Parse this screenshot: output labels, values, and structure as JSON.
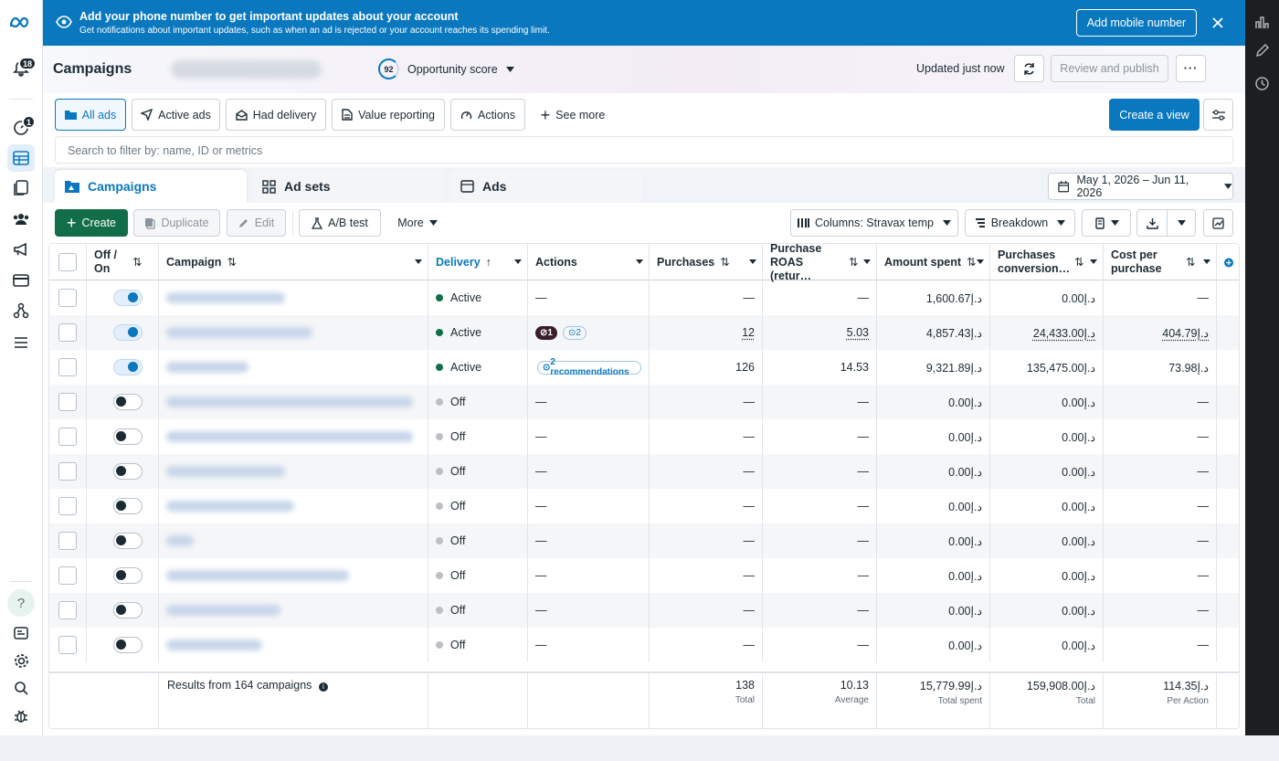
{
  "nav": {
    "notifications_badge": "18",
    "alerts_badge": "1"
  },
  "banner": {
    "title": "Add your phone number to get important updates about your account",
    "subtitle": "Get notifications about important updates, such as when an ad is rejected or your account reaches its spending limit.",
    "button": "Add mobile number"
  },
  "header": {
    "title": "Campaigns",
    "score_value": "92",
    "score_label": "Opportunity score",
    "updated": "Updated just now",
    "review_publish": "Review and publish"
  },
  "views": {
    "all_ads": "All ads",
    "active_ads": "Active ads",
    "had_delivery": "Had delivery",
    "value_reporting": "Value reporting",
    "actions": "Actions",
    "see_more": "See more",
    "create_view": "Create a view"
  },
  "search": {
    "placeholder": "Search to filter by: name, ID or metrics"
  },
  "tabs": {
    "campaigns": "Campaigns",
    "ad_sets": "Ad sets",
    "ads": "Ads"
  },
  "date_range": "May 1, 2026 – Jun 11, 2026",
  "toolbar": {
    "create": "Create",
    "duplicate": "Duplicate",
    "edit": "Edit",
    "ab_test": "A/B test",
    "more": "More",
    "columns": "Columns: Stravax temp",
    "breakdown": "Breakdown"
  },
  "columns": {
    "offon": "Off / On",
    "campaign": "Campaign",
    "delivery": "Delivery",
    "actions": "Actions",
    "purchases": "Purchases",
    "roas": "Purchase ROAS (retur…",
    "amount": "Amount spent",
    "conv": "Purchases conversion…",
    "cpp": "Cost per purchase"
  },
  "rows": [
    {
      "on": true,
      "delivery": "Active",
      "actions": "—",
      "purchases": "—",
      "roas": "—",
      "amount": "1,600.67د.إ",
      "conv": "0.00د.إ",
      "cpp": "—"
    },
    {
      "on": true,
      "delivery": "Active",
      "actions": "",
      "badge_issue": "1",
      "badge_rec": "2",
      "purchases": "12",
      "roas": "5.03",
      "amount": "4,857.43د.إ",
      "conv": "24,433.00د.إ",
      "cpp": "404.79د.إ"
    },
    {
      "on": true,
      "delivery": "Active",
      "actions": "",
      "rec_label": "2 recommendations",
      "purchases": "126",
      "roas": "14.53",
      "amount": "9,321.89د.إ",
      "conv": "135,475.00د.إ",
      "cpp": "73.98د.إ"
    },
    {
      "on": false,
      "delivery": "Off",
      "actions": "—",
      "purchases": "—",
      "roas": "—",
      "amount": "0.00د.إ",
      "conv": "0.00د.إ",
      "cpp": "—"
    },
    {
      "on": false,
      "delivery": "Off",
      "actions": "—",
      "purchases": "—",
      "roas": "—",
      "amount": "0.00د.إ",
      "conv": "0.00د.إ",
      "cpp": "—"
    },
    {
      "on": false,
      "delivery": "Off",
      "actions": "—",
      "purchases": "—",
      "roas": "—",
      "amount": "0.00د.إ",
      "conv": "0.00د.إ",
      "cpp": "—"
    },
    {
      "on": false,
      "delivery": "Off",
      "actions": "—",
      "purchases": "—",
      "roas": "—",
      "amount": "0.00د.إ",
      "conv": "0.00د.إ",
      "cpp": "—"
    },
    {
      "on": false,
      "delivery": "Off",
      "actions": "—",
      "purchases": "—",
      "roas": "—",
      "amount": "0.00د.إ",
      "conv": "0.00د.إ",
      "cpp": "—"
    },
    {
      "on": false,
      "delivery": "Off",
      "actions": "—",
      "purchases": "—",
      "roas": "—",
      "amount": "0.00د.إ",
      "conv": "0.00د.إ",
      "cpp": "—"
    },
    {
      "on": false,
      "delivery": "Off",
      "actions": "—",
      "purchases": "—",
      "roas": "—",
      "amount": "0.00د.إ",
      "conv": "0.00د.إ",
      "cpp": "—"
    },
    {
      "on": false,
      "delivery": "Off",
      "actions": "—",
      "purchases": "—",
      "roas": "—",
      "amount": "0.00د.إ",
      "conv": "0.00د.إ",
      "cpp": "—"
    }
  ],
  "footer": {
    "results": "Results from 164 campaigns",
    "purchases": "138",
    "purchases_sub": "Total",
    "roas": "10.13",
    "roas_sub": "Average",
    "amount": "15,779.99د.إ",
    "amount_sub": "Total spent",
    "conv": "159,908.00د.إ",
    "conv_sub": "Total",
    "cpp": "114.35د.إ",
    "cpp_sub": "Per Action"
  },
  "colors": {
    "brand": "#0a78be",
    "active": "#126e48",
    "off": "#bcc0c4"
  }
}
